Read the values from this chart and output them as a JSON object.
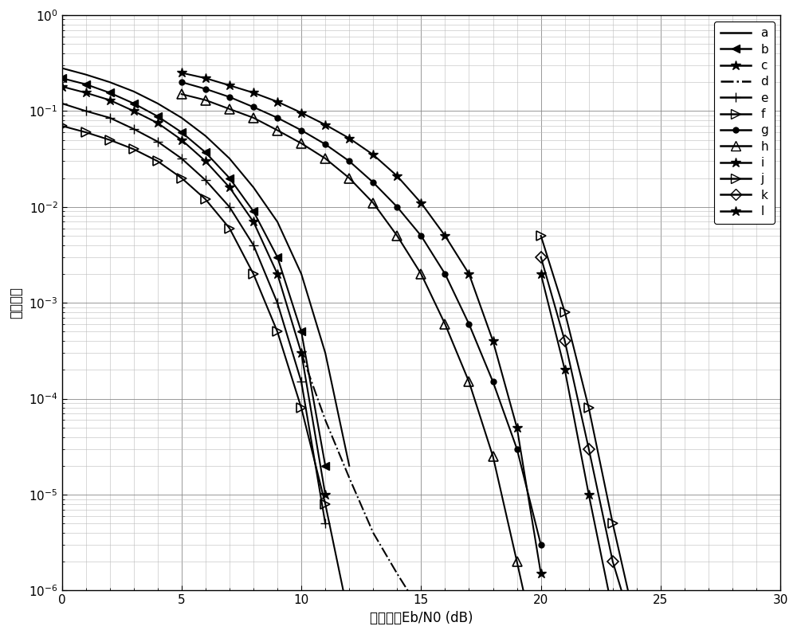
{
  "xlabel": "信噪比：Eb/N0 (dB)",
  "ylabel": "误比特率",
  "xlim": [
    0,
    30
  ],
  "ylim": [
    1e-06,
    1.0
  ],
  "background_color": "#ffffff",
  "series": [
    {
      "label": "a",
      "linestyle": "-",
      "marker": "None",
      "ms": 6,
      "x": [
        0,
        1,
        2,
        3,
        4,
        5,
        6,
        7,
        8,
        9,
        10,
        11,
        12
      ],
      "y": [
        0.28,
        0.24,
        0.2,
        0.16,
        0.12,
        0.085,
        0.055,
        0.032,
        0.016,
        0.007,
        0.002,
        0.0003,
        2e-05
      ]
    },
    {
      "label": "b",
      "linestyle": "-",
      "marker": "left",
      "ms": 7,
      "x": [
        0,
        1,
        2,
        3,
        4,
        5,
        6,
        7,
        8,
        9,
        10,
        11
      ],
      "y": [
        0.22,
        0.19,
        0.155,
        0.12,
        0.088,
        0.06,
        0.037,
        0.02,
        0.009,
        0.003,
        0.0005,
        2e-05
      ]
    },
    {
      "label": "c",
      "linestyle": "-",
      "marker": "*",
      "ms": 9,
      "x": [
        0,
        1,
        2,
        3,
        4,
        5,
        6,
        7,
        8,
        9,
        10,
        11
      ],
      "y": [
        0.18,
        0.155,
        0.13,
        0.1,
        0.075,
        0.05,
        0.03,
        0.016,
        0.007,
        0.002,
        0.0003,
        1e-05
      ]
    },
    {
      "label": "d",
      "linestyle": "-.",
      "marker": "None",
      "ms": 6,
      "x": [
        10,
        11,
        12,
        13,
        14,
        15,
        16
      ],
      "y": [
        0.0003,
        6e-05,
        1.5e-05,
        4e-06,
        1.5e-06,
        6e-07,
        2e-07
      ]
    },
    {
      "label": "e",
      "linestyle": "-",
      "marker": "+",
      "ms": 9,
      "x": [
        0,
        1,
        2,
        3,
        4,
        5,
        6,
        7,
        8,
        9,
        10,
        11
      ],
      "y": [
        0.12,
        0.1,
        0.085,
        0.065,
        0.048,
        0.032,
        0.019,
        0.01,
        0.004,
        0.001,
        0.00015,
        5e-06
      ]
    },
    {
      "label": "f",
      "linestyle": "-",
      "marker": "right",
      "ms": 8,
      "x": [
        0,
        1,
        2,
        3,
        4,
        5,
        6,
        7,
        8,
        9,
        10,
        11,
        12
      ],
      "y": [
        0.07,
        0.06,
        0.05,
        0.04,
        0.03,
        0.02,
        0.012,
        0.006,
        0.002,
        0.0005,
        8e-05,
        8e-06,
        5e-07
      ]
    },
    {
      "label": "g",
      "linestyle": "-",
      "marker": ".",
      "ms": 10,
      "x": [
        5,
        6,
        7,
        8,
        9,
        10,
        11,
        12,
        13,
        14,
        15,
        16,
        17,
        18,
        19,
        20
      ],
      "y": [
        0.2,
        0.17,
        0.14,
        0.11,
        0.085,
        0.063,
        0.045,
        0.03,
        0.018,
        0.01,
        0.005,
        0.002,
        0.0006,
        0.00015,
        3e-05,
        3e-06
      ]
    },
    {
      "label": "h",
      "linestyle": "-",
      "marker": "^",
      "ms": 8,
      "x": [
        5,
        6,
        7,
        8,
        9,
        10,
        11,
        12,
        13,
        14,
        15,
        16,
        17,
        18,
        19,
        20
      ],
      "y": [
        0.15,
        0.13,
        0.105,
        0.085,
        0.063,
        0.046,
        0.032,
        0.02,
        0.011,
        0.005,
        0.002,
        0.0006,
        0.00015,
        2.5e-05,
        2e-06,
        1.5e-07
      ]
    },
    {
      "label": "i",
      "linestyle": "-",
      "marker": "*",
      "ms": 9,
      "x": [
        5,
        6,
        7,
        8,
        9,
        10,
        11,
        12,
        13,
        14,
        15,
        16,
        17,
        18,
        19,
        20
      ],
      "y": [
        0.25,
        0.22,
        0.185,
        0.155,
        0.125,
        0.096,
        0.072,
        0.052,
        0.035,
        0.021,
        0.011,
        0.005,
        0.002,
        0.0004,
        5e-05,
        1.5e-06
      ]
    },
    {
      "label": "j",
      "linestyle": "-",
      "marker": "right",
      "ms": 8,
      "x": [
        20,
        21,
        22,
        23,
        24,
        25,
        26
      ],
      "y": [
        0.005,
        0.0008,
        8e-05,
        5e-06,
        4e-07,
        2.5e-07,
        2.5e-07
      ]
    },
    {
      "label": "k",
      "linestyle": "-",
      "marker": "open_diamond",
      "ms": 7,
      "x": [
        20,
        21,
        22,
        23,
        24,
        25,
        26
      ],
      "y": [
        0.003,
        0.0004,
        3e-05,
        2e-06,
        3e-07,
        2.5e-07,
        2.5e-07
      ]
    },
    {
      "label": "l",
      "linestyle": "-",
      "marker": "*",
      "ms": 9,
      "x": [
        20,
        21,
        22,
        23,
        24,
        25,
        26
      ],
      "y": [
        0.002,
        0.0002,
        1e-05,
        6e-07,
        1e-07,
        1e-07,
        1e-07
      ]
    }
  ]
}
